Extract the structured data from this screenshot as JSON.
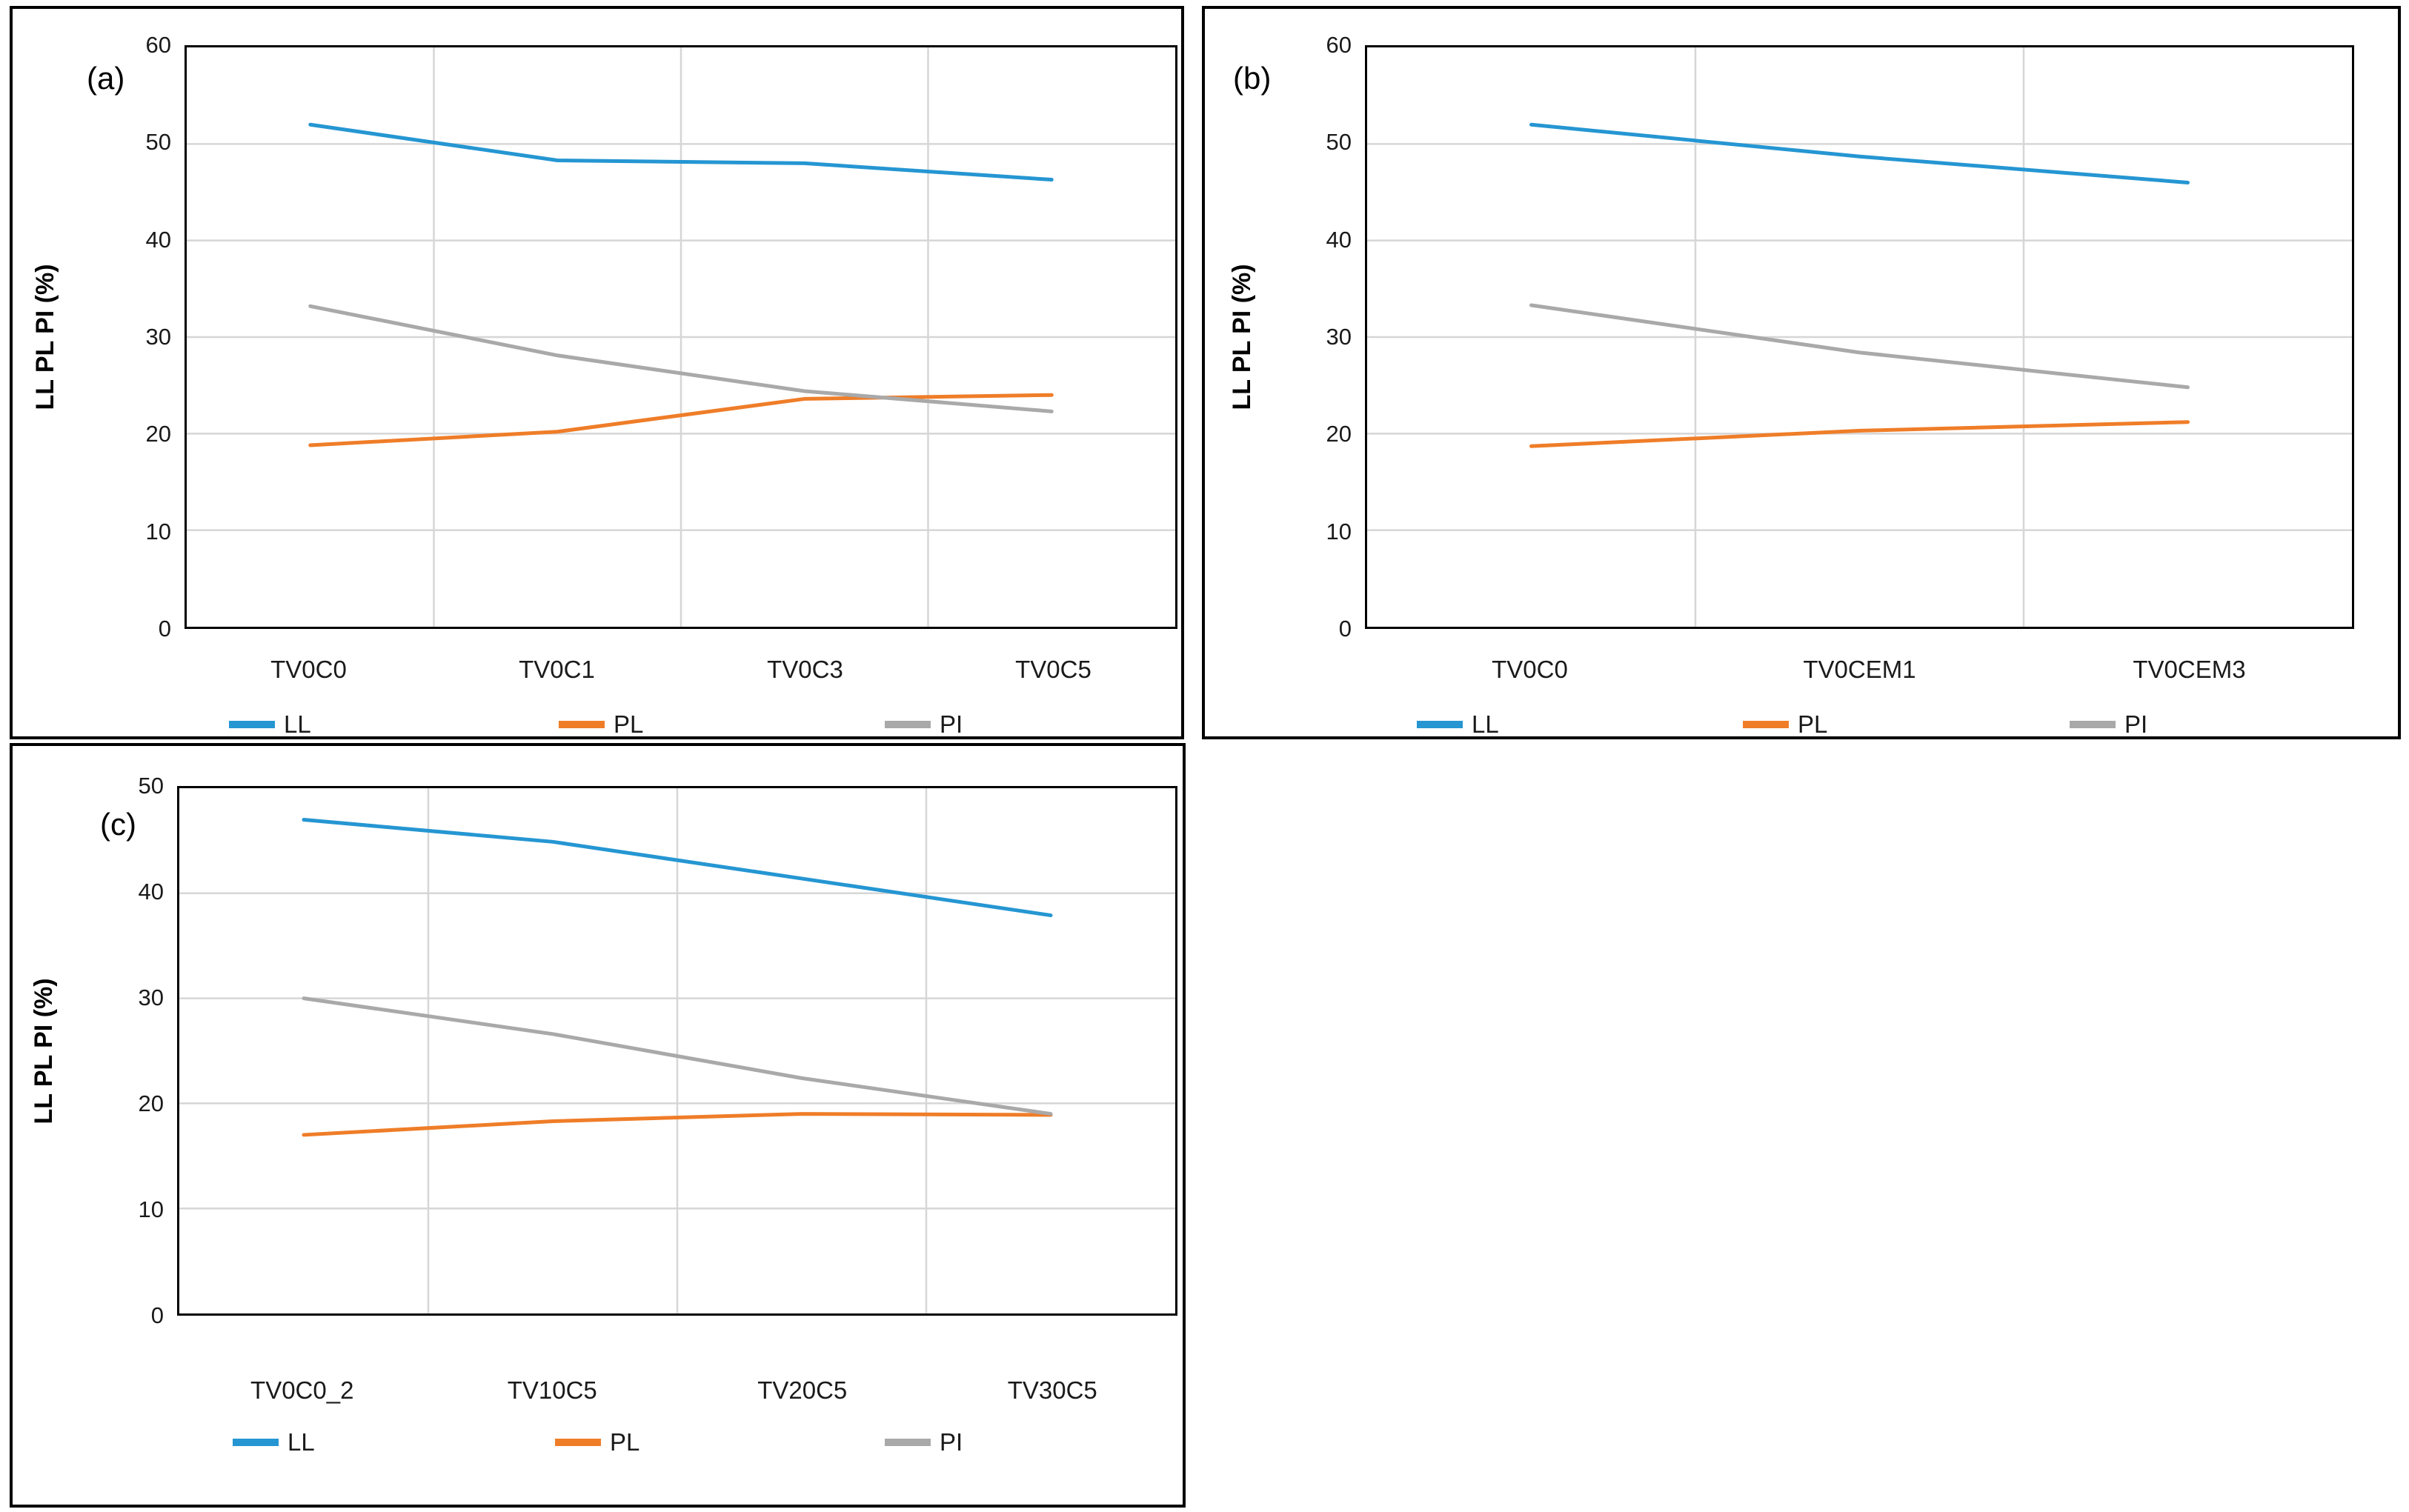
{
  "figure": {
    "description_visible_text_only": "Three line-chart panels labelled (a), (b), (c)",
    "colors": {
      "ll_line": "#2596D2",
      "pl_line": "#EF7D28",
      "pi_line": "#A9A9A9",
      "gridline": "#D6D6D6",
      "axis_and_borders": "#000000"
    }
  },
  "chart_data": [
    {
      "type": "line",
      "panel": "(a)",
      "title": "",
      "xlabel": "",
      "ylabel": "LL PL PI (%)",
      "categories": [
        "TV0C0",
        "TV0C1",
        "TV0C3",
        "TV0C5"
      ],
      "series": [
        {
          "name": "LL",
          "color": "#2596D2",
          "values": [
            52,
            48.3,
            48,
            46.3
          ]
        },
        {
          "name": "PL",
          "color": "#EF7D28",
          "values": [
            18.8,
            20.2,
            23.6,
            24
          ]
        },
        {
          "name": "PI",
          "color": "#A9A9A9",
          "values": [
            33.2,
            28.1,
            24.4,
            22.3
          ]
        }
      ],
      "ylim": [
        0,
        60
      ],
      "ytick_step": 10,
      "grid": true,
      "legend_position": "bottom"
    },
    {
      "type": "line",
      "panel": "(b)",
      "title": "",
      "xlabel": "",
      "ylabel": "LL PL PI (%)",
      "categories": [
        "TV0C0",
        "TV0CEM1",
        "TV0CEM3"
      ],
      "series": [
        {
          "name": "LL",
          "color": "#2596D2",
          "values": [
            52,
            48.7,
            46
          ]
        },
        {
          "name": "PL",
          "color": "#EF7D28",
          "values": [
            18.7,
            20.3,
            21.2
          ]
        },
        {
          "name": "PI",
          "color": "#A9A9A9",
          "values": [
            33.3,
            28.4,
            24.8
          ]
        }
      ],
      "ylim": [
        0,
        60
      ],
      "ytick_step": 10,
      "grid": true,
      "legend_position": "bottom"
    },
    {
      "type": "line",
      "panel": "(c)",
      "title": "",
      "xlabel": "",
      "ylabel": "LL PL PI (%)",
      "categories": [
        "TV0C0_2",
        "TV10C5",
        "TV20C5",
        "TV30C5"
      ],
      "series": [
        {
          "name": "LL",
          "color": "#2596D2",
          "values": [
            47,
            44.9,
            41.4,
            37.9
          ]
        },
        {
          "name": "PL",
          "color": "#EF7D28",
          "values": [
            17,
            18.3,
            19,
            18.9
          ]
        },
        {
          "name": "PI",
          "color": "#A9A9A9",
          "values": [
            30,
            26.6,
            22.4,
            19
          ]
        }
      ],
      "ylim": [
        0,
        50
      ],
      "ytick_step": 10,
      "grid": true,
      "legend_position": "bottom"
    }
  ]
}
